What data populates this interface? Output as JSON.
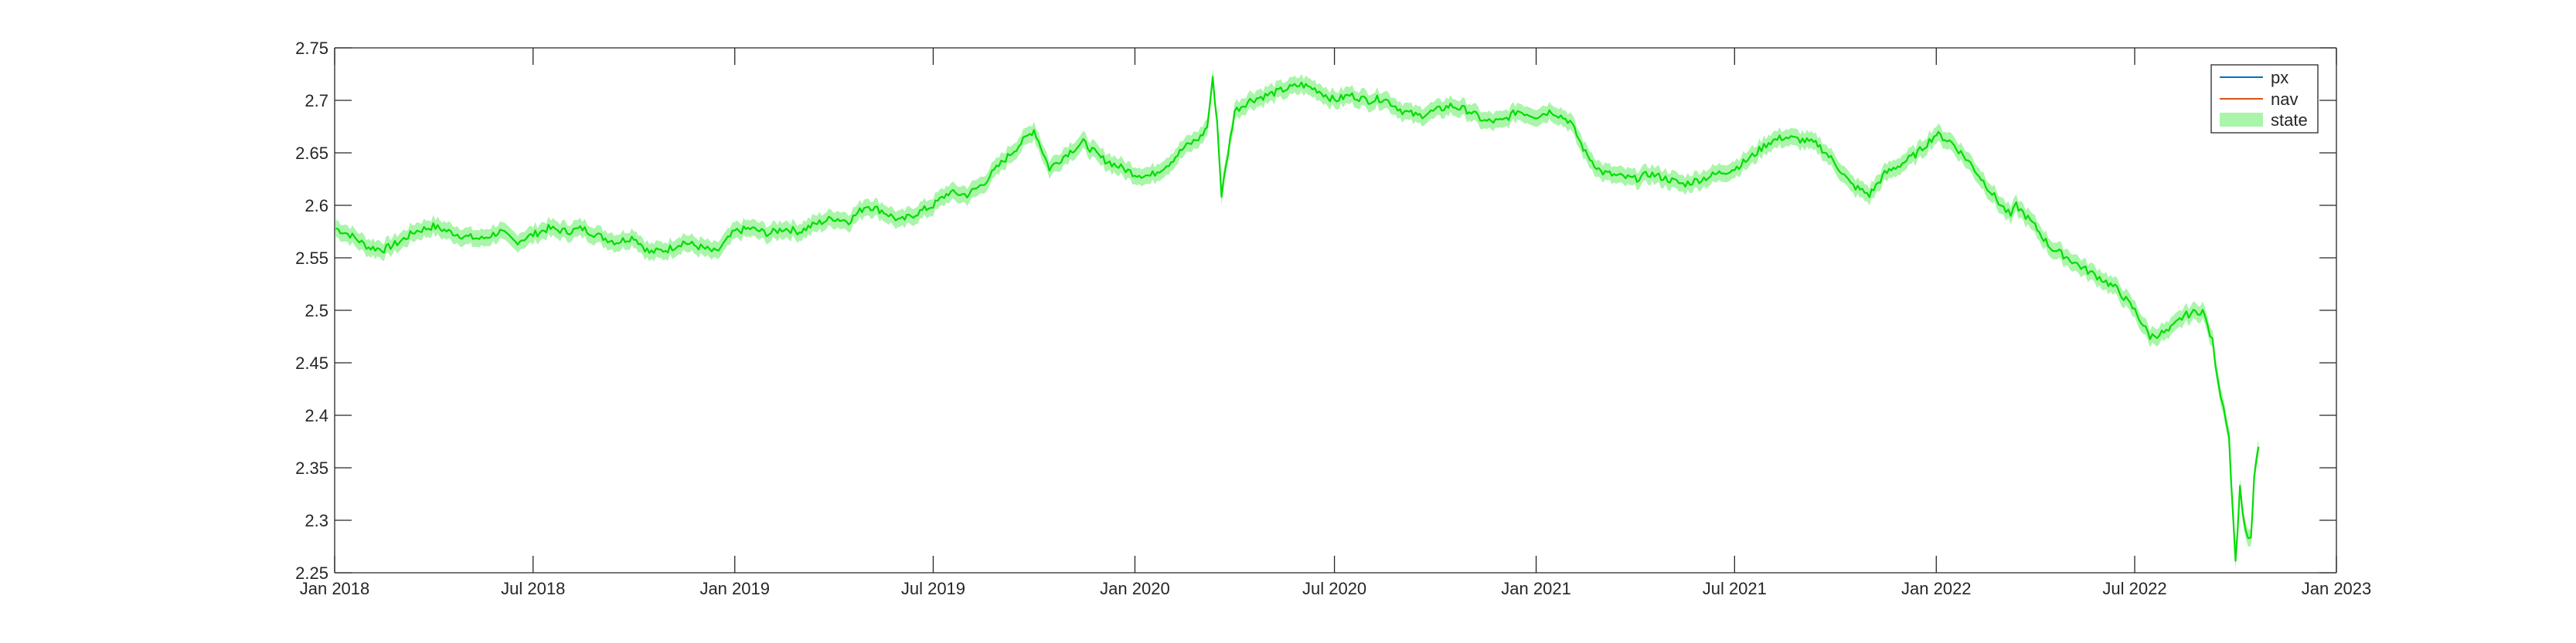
{
  "chart_data": {
    "type": "line",
    "title": "",
    "xlabel": "",
    "ylabel": "",
    "xlim": [
      "2018-01-01",
      "2023-01-01"
    ],
    "ylim": [
      2.25,
      2.75
    ],
    "x_ticks": [
      "2018-01-01",
      "2018-07-01",
      "2019-01-01",
      "2019-07-01",
      "2020-01-01",
      "2020-07-01",
      "2021-01-01",
      "2021-07-01",
      "2022-01-01",
      "2022-07-01",
      "2023-01-01"
    ],
    "x_tick_labels": [
      "Jan 2018",
      "Jul 2018",
      "Jan 2019",
      "Jul 2019",
      "Jan 2020",
      "Jul 2020",
      "Jan 2021",
      "Jul 2021",
      "Jan 2022",
      "Jul 2022",
      "Jan 2023"
    ],
    "y_ticks": [
      2.25,
      2.3,
      2.35,
      2.4,
      2.45,
      2.5,
      2.55,
      2.6,
      2.65,
      2.7,
      2.75
    ],
    "y_tick_labels": [
      "2.25",
      "2.3",
      "2.35",
      "2.4",
      "2.45",
      "2.5",
      "2.55",
      "2.6",
      "2.65",
      "2.7",
      "2.75"
    ],
    "grid": false,
    "legend_position": "top-right",
    "band_halfwidth": 0.008,
    "colors": {
      "px": "#0072BD",
      "nav": "#D95319",
      "state": "#00DD00",
      "state_band": "#AAF5AA"
    },
    "series": [
      {
        "name": "px",
        "style": "line"
      },
      {
        "name": "nav",
        "style": "line"
      },
      {
        "name": "state",
        "style": "band"
      }
    ],
    "dates": [
      "2018-01-02",
      "2018-01-15",
      "2018-02-01",
      "2018-02-15",
      "2018-03-01",
      "2018-03-15",
      "2018-04-01",
      "2018-04-15",
      "2018-05-01",
      "2018-05-15",
      "2018-06-01",
      "2018-06-15",
      "2018-07-01",
      "2018-07-15",
      "2018-08-01",
      "2018-08-15",
      "2018-09-01",
      "2018-09-15",
      "2018-10-01",
      "2018-10-15",
      "2018-11-01",
      "2018-11-15",
      "2018-12-01",
      "2018-12-15",
      "2019-01-01",
      "2019-01-15",
      "2019-02-01",
      "2019-02-15",
      "2019-03-01",
      "2019-03-15",
      "2019-04-01",
      "2019-04-15",
      "2019-05-01",
      "2019-05-15",
      "2019-06-01",
      "2019-06-15",
      "2019-07-01",
      "2019-07-15",
      "2019-08-01",
      "2019-08-15",
      "2019-09-01",
      "2019-09-15",
      "2019-10-01",
      "2019-10-15",
      "2019-11-01",
      "2019-11-15",
      "2019-12-01",
      "2019-12-15",
      "2020-01-01",
      "2020-01-15",
      "2020-02-01",
      "2020-02-15",
      "2020-03-01",
      "2020-03-07",
      "2020-03-12",
      "2020-03-16",
      "2020-03-20",
      "2020-04-01",
      "2020-04-15",
      "2020-05-01",
      "2020-05-15",
      "2020-06-01",
      "2020-06-15",
      "2020-07-01",
      "2020-07-15",
      "2020-08-01",
      "2020-08-15",
      "2020-09-01",
      "2020-09-15",
      "2020-10-01",
      "2020-10-15",
      "2020-11-01",
      "2020-11-15",
      "2020-12-01",
      "2020-12-15",
      "2021-01-01",
      "2021-01-15",
      "2021-02-01",
      "2021-02-15",
      "2021-03-01",
      "2021-03-15",
      "2021-04-01",
      "2021-04-15",
      "2021-05-01",
      "2021-05-15",
      "2021-06-01",
      "2021-06-15",
      "2021-07-01",
      "2021-07-15",
      "2021-08-01",
      "2021-08-15",
      "2021-09-01",
      "2021-09-15",
      "2021-10-01",
      "2021-10-15",
      "2021-11-01",
      "2021-11-15",
      "2021-12-01",
      "2021-12-15",
      "2022-01-01",
      "2022-01-15",
      "2022-02-01",
      "2022-02-15",
      "2022-03-01",
      "2022-03-10",
      "2022-03-15",
      "2022-04-01",
      "2022-04-15",
      "2022-05-01",
      "2022-05-15",
      "2022-06-01",
      "2022-06-15",
      "2022-07-01",
      "2022-07-15",
      "2022-08-01",
      "2022-08-15",
      "2022-09-01",
      "2022-09-10",
      "2022-09-15",
      "2022-09-20",
      "2022-09-25",
      "2022-10-01",
      "2022-10-05",
      "2022-10-10",
      "2022-10-15",
      "2022-10-18",
      "2022-10-22"
    ],
    "values": [
      2.578,
      2.572,
      2.56,
      2.558,
      2.565,
      2.575,
      2.58,
      2.575,
      2.57,
      2.568,
      2.575,
      2.565,
      2.572,
      2.578,
      2.575,
      2.578,
      2.57,
      2.565,
      2.57,
      2.555,
      2.558,
      2.565,
      2.56,
      2.555,
      2.575,
      2.578,
      2.573,
      2.578,
      2.575,
      2.582,
      2.588,
      2.585,
      2.6,
      2.595,
      2.585,
      2.592,
      2.6,
      2.612,
      2.61,
      2.62,
      2.64,
      2.655,
      2.672,
      2.635,
      2.65,
      2.66,
      2.645,
      2.638,
      2.63,
      2.628,
      2.64,
      2.655,
      2.665,
      2.675,
      2.72,
      2.68,
      2.61,
      2.69,
      2.7,
      2.705,
      2.71,
      2.715,
      2.71,
      2.7,
      2.705,
      2.7,
      2.702,
      2.69,
      2.685,
      2.69,
      2.695,
      2.69,
      2.68,
      2.68,
      2.69,
      2.685,
      2.69,
      2.68,
      2.65,
      2.632,
      2.628,
      2.625,
      2.63,
      2.625,
      2.62,
      2.625,
      2.63,
      2.635,
      2.645,
      2.66,
      2.665,
      2.662,
      2.658,
      2.64,
      2.62,
      2.61,
      2.63,
      2.64,
      2.65,
      2.668,
      2.66,
      2.64,
      2.62,
      2.6,
      2.59,
      2.6,
      2.58,
      2.56,
      2.55,
      2.54,
      2.53,
      2.52,
      2.5,
      2.475,
      2.48,
      2.495,
      2.5,
      2.47,
      2.43,
      2.41,
      2.38,
      2.26,
      2.33,
      2.29,
      2.28,
      2.34,
      2.37
    ]
  },
  "legend": [
    {
      "label": "px",
      "kind": "line"
    },
    {
      "label": "nav",
      "kind": "line"
    },
    {
      "label": "state",
      "kind": "patch"
    }
  ]
}
